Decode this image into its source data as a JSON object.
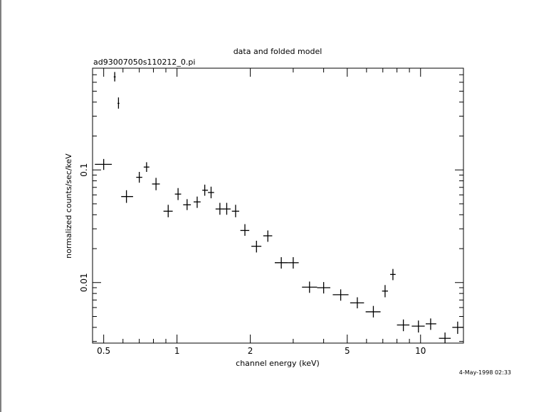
{
  "chart_data": {
    "type": "scatter",
    "title": "data and folded model",
    "subtitle": "ad93007050s110212_0.pi",
    "xlabel": "channel energy (keV)",
    "ylabel": "normalized counts/sec/keV",
    "xscale": "log",
    "yscale": "log",
    "xlim": [
      0.45,
      15.0
    ],
    "ylim": [
      0.0029,
      0.8
    ],
    "xticks": [
      {
        "value": 0.5,
        "label": "0.5"
      },
      {
        "value": 1,
        "label": "1"
      },
      {
        "value": 2,
        "label": "2"
      },
      {
        "value": 5,
        "label": "5"
      },
      {
        "value": 10,
        "label": "10"
      }
    ],
    "yticks": [
      {
        "value": 0.01,
        "label": "0.01"
      },
      {
        "value": 0.1,
        "label": "0.1"
      }
    ],
    "grid": false,
    "legend": "none",
    "timestamp": "4-May-1998 02:33",
    "series": [
      {
        "marker": "crosshair-errorbar",
        "color": "#000000",
        "points": [
          {
            "x": 0.5,
            "xlo": 0.46,
            "xhi": 0.54,
            "y": 0.112,
            "ylo": 0.1,
            "yhi": 0.125
          },
          {
            "x": 0.555,
            "xlo": 0.55,
            "xhi": 0.56,
            "y": 0.67,
            "ylo": 0.61,
            "yhi": 0.74
          },
          {
            "x": 0.575,
            "xlo": 0.57,
            "xhi": 0.58,
            "y": 0.39,
            "ylo": 0.35,
            "yhi": 0.44
          },
          {
            "x": 0.62,
            "xlo": 0.59,
            "xhi": 0.66,
            "y": 0.058,
            "ylo": 0.051,
            "yhi": 0.066
          },
          {
            "x": 0.7,
            "xlo": 0.68,
            "xhi": 0.72,
            "y": 0.086,
            "ylo": 0.077,
            "yhi": 0.096
          },
          {
            "x": 0.75,
            "xlo": 0.73,
            "xhi": 0.77,
            "y": 0.106,
            "ylo": 0.096,
            "yhi": 0.117
          },
          {
            "x": 0.82,
            "xlo": 0.79,
            "xhi": 0.85,
            "y": 0.075,
            "ylo": 0.066,
            "yhi": 0.085
          },
          {
            "x": 0.92,
            "xlo": 0.88,
            "xhi": 0.96,
            "y": 0.043,
            "ylo": 0.038,
            "yhi": 0.049
          },
          {
            "x": 1.01,
            "xlo": 0.98,
            "xhi": 1.04,
            "y": 0.061,
            "ylo": 0.054,
            "yhi": 0.069
          },
          {
            "x": 1.1,
            "xlo": 1.06,
            "xhi": 1.14,
            "y": 0.049,
            "ylo": 0.044,
            "yhi": 0.055
          },
          {
            "x": 1.21,
            "xlo": 1.17,
            "xhi": 1.25,
            "y": 0.052,
            "ylo": 0.046,
            "yhi": 0.058
          },
          {
            "x": 1.3,
            "xlo": 1.27,
            "xhi": 1.34,
            "y": 0.066,
            "ylo": 0.059,
            "yhi": 0.074
          },
          {
            "x": 1.38,
            "xlo": 1.34,
            "xhi": 1.42,
            "y": 0.063,
            "ylo": 0.056,
            "yhi": 0.071
          },
          {
            "x": 1.5,
            "xlo": 1.44,
            "xhi": 1.56,
            "y": 0.045,
            "ylo": 0.04,
            "yhi": 0.051
          },
          {
            "x": 1.6,
            "xlo": 1.55,
            "xhi": 1.66,
            "y": 0.045,
            "ylo": 0.04,
            "yhi": 0.051
          },
          {
            "x": 1.74,
            "xlo": 1.68,
            "xhi": 1.8,
            "y": 0.043,
            "ylo": 0.038,
            "yhi": 0.049
          },
          {
            "x": 1.9,
            "xlo": 1.82,
            "xhi": 1.98,
            "y": 0.029,
            "ylo": 0.026,
            "yhi": 0.033
          },
          {
            "x": 2.12,
            "xlo": 2.02,
            "xhi": 2.22,
            "y": 0.021,
            "ylo": 0.0185,
            "yhi": 0.0235
          },
          {
            "x": 2.36,
            "xlo": 2.26,
            "xhi": 2.46,
            "y": 0.026,
            "ylo": 0.023,
            "yhi": 0.029
          },
          {
            "x": 2.68,
            "xlo": 2.52,
            "xhi": 2.86,
            "y": 0.015,
            "ylo": 0.0133,
            "yhi": 0.0168
          },
          {
            "x": 3.0,
            "xlo": 2.86,
            "xhi": 3.16,
            "y": 0.015,
            "ylo": 0.0133,
            "yhi": 0.0168
          },
          {
            "x": 3.5,
            "xlo": 3.26,
            "xhi": 3.76,
            "y": 0.0091,
            "ylo": 0.0081,
            "yhi": 0.0102
          },
          {
            "x": 4.0,
            "xlo": 3.76,
            "xhi": 4.26,
            "y": 0.009,
            "ylo": 0.008,
            "yhi": 0.0101
          },
          {
            "x": 4.7,
            "xlo": 4.36,
            "xhi": 5.06,
            "y": 0.0078,
            "ylo": 0.0069,
            "yhi": 0.0087
          },
          {
            "x": 5.5,
            "xlo": 5.14,
            "xhi": 5.86,
            "y": 0.0066,
            "ylo": 0.0059,
            "yhi": 0.0074
          },
          {
            "x": 6.4,
            "xlo": 5.95,
            "xhi": 6.85,
            "y": 0.0055,
            "ylo": 0.0049,
            "yhi": 0.0062
          },
          {
            "x": 7.15,
            "xlo": 6.95,
            "xhi": 7.35,
            "y": 0.0084,
            "ylo": 0.0074,
            "yhi": 0.0095
          },
          {
            "x": 7.7,
            "xlo": 7.5,
            "xhi": 7.9,
            "y": 0.0118,
            "ylo": 0.0105,
            "yhi": 0.0132
          },
          {
            "x": 8.5,
            "xlo": 8.0,
            "xhi": 9.0,
            "y": 0.0042,
            "ylo": 0.0037,
            "yhi": 0.0047
          },
          {
            "x": 9.8,
            "xlo": 9.2,
            "xhi": 10.4,
            "y": 0.0041,
            "ylo": 0.0036,
            "yhi": 0.0046
          },
          {
            "x": 11.0,
            "xlo": 10.5,
            "xhi": 11.6,
            "y": 0.0043,
            "ylo": 0.0038,
            "yhi": 0.0048
          },
          {
            "x": 12.6,
            "xlo": 11.9,
            "xhi": 13.3,
            "y": 0.0032,
            "ylo": 0.0029,
            "yhi": 0.0036
          },
          {
            "x": 14.2,
            "xlo": 13.5,
            "xhi": 15.0,
            "y": 0.004,
            "ylo": 0.0035,
            "yhi": 0.0045
          }
        ]
      }
    ]
  }
}
